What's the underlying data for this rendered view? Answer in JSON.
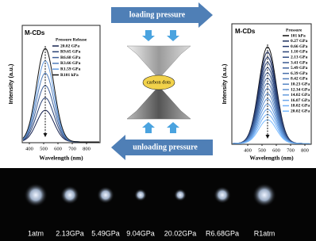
{
  "left_panel": {
    "title": "M-CDs",
    "legend_title": "Pressure Release",
    "legend": [
      "20.02 GPa",
      "R9.65 GPa",
      "R6.68 GPa",
      "R3.66 GPa",
      "R1.59 GPa",
      "R101 kPa"
    ],
    "y_label": "Intensity (a.u.)",
    "x_label": "Wavelength (nm)",
    "x_ticks": [
      400,
      500,
      600,
      700,
      800
    ]
  },
  "right_panel": {
    "title": "M-CDs",
    "legend_title": "Pressure",
    "legend": [
      "101 kPa",
      "0.27 GPa",
      "0.66 GPa",
      "1.10 GPa",
      "2.13 GPa",
      "3.41 GPa",
      "5.49 GPa",
      "6.39 GPa",
      "8.42 GPa",
      "10.23 GPa",
      "12.34 GPa",
      "14.02 GPa",
      "16.07 GPa",
      "18.02 GPa",
      "20.02 GPa"
    ],
    "y_label": "Intensity (a.u.)",
    "x_label": "Wavelength (nm)",
    "x_ticks": [
      400,
      500,
      600,
      700,
      800
    ]
  },
  "diagram": {
    "top_label": "loading pressure",
    "center_label": "carbon dots",
    "bottom_label": "unloading pressure"
  },
  "photos": {
    "labels": [
      "1atm",
      "2.13GPa",
      "5.49GPa",
      "9.04GPa",
      "20.02GPa",
      "R6.68GPa",
      "R1atm"
    ]
  }
}
